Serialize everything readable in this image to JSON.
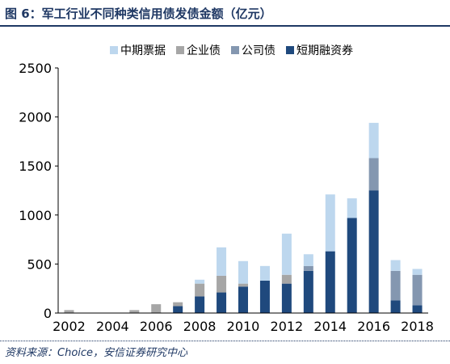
{
  "figure": {
    "title": "图 6：军工行业不同种类信用债发债金额（亿元）",
    "source": "资料来源：Choice，安信证券研究中心"
  },
  "chart_data": {
    "type": "bar",
    "stacked": true,
    "categories": [
      "2002",
      "2003",
      "2004",
      "2005",
      "2006",
      "2007",
      "2008",
      "2009",
      "2010",
      "2011",
      "2012",
      "2013",
      "2014",
      "2015",
      "2016",
      "2017",
      "2018"
    ],
    "x_tick_labels": [
      "2002",
      "2004",
      "2006",
      "2008",
      "2010",
      "2012",
      "2014",
      "2016",
      "2018"
    ],
    "series": [
      {
        "name": "短期融资券",
        "color": "#1f497d",
        "values": [
          0,
          0,
          0,
          0,
          0,
          70,
          170,
          210,
          270,
          330,
          300,
          430,
          630,
          970,
          1250,
          130,
          80
        ]
      },
      {
        "name": "公司债",
        "color": "#8497b0",
        "values": [
          0,
          0,
          0,
          0,
          0,
          0,
          0,
          0,
          0,
          0,
          0,
          50,
          0,
          0,
          330,
          300,
          310
        ]
      },
      {
        "name": "企业债",
        "color": "#a6a6a6",
        "values": [
          30,
          0,
          0,
          30,
          90,
          40,
          130,
          170,
          30,
          0,
          90,
          0,
          0,
          0,
          0,
          0,
          0
        ]
      },
      {
        "name": "中期票据",
        "color": "#bdd7ee",
        "values": [
          0,
          0,
          0,
          0,
          0,
          0,
          40,
          290,
          230,
          150,
          420,
          120,
          580,
          200,
          360,
          110,
          60
        ]
      }
    ],
    "legend_order": [
      "中期票据",
      "企业债",
      "公司债",
      "短期融资券"
    ],
    "legend_position": "top",
    "ylim": [
      0,
      2500
    ],
    "y_ticks": [
      0,
      500,
      1000,
      1500,
      2000,
      2500
    ],
    "grid": false
  }
}
